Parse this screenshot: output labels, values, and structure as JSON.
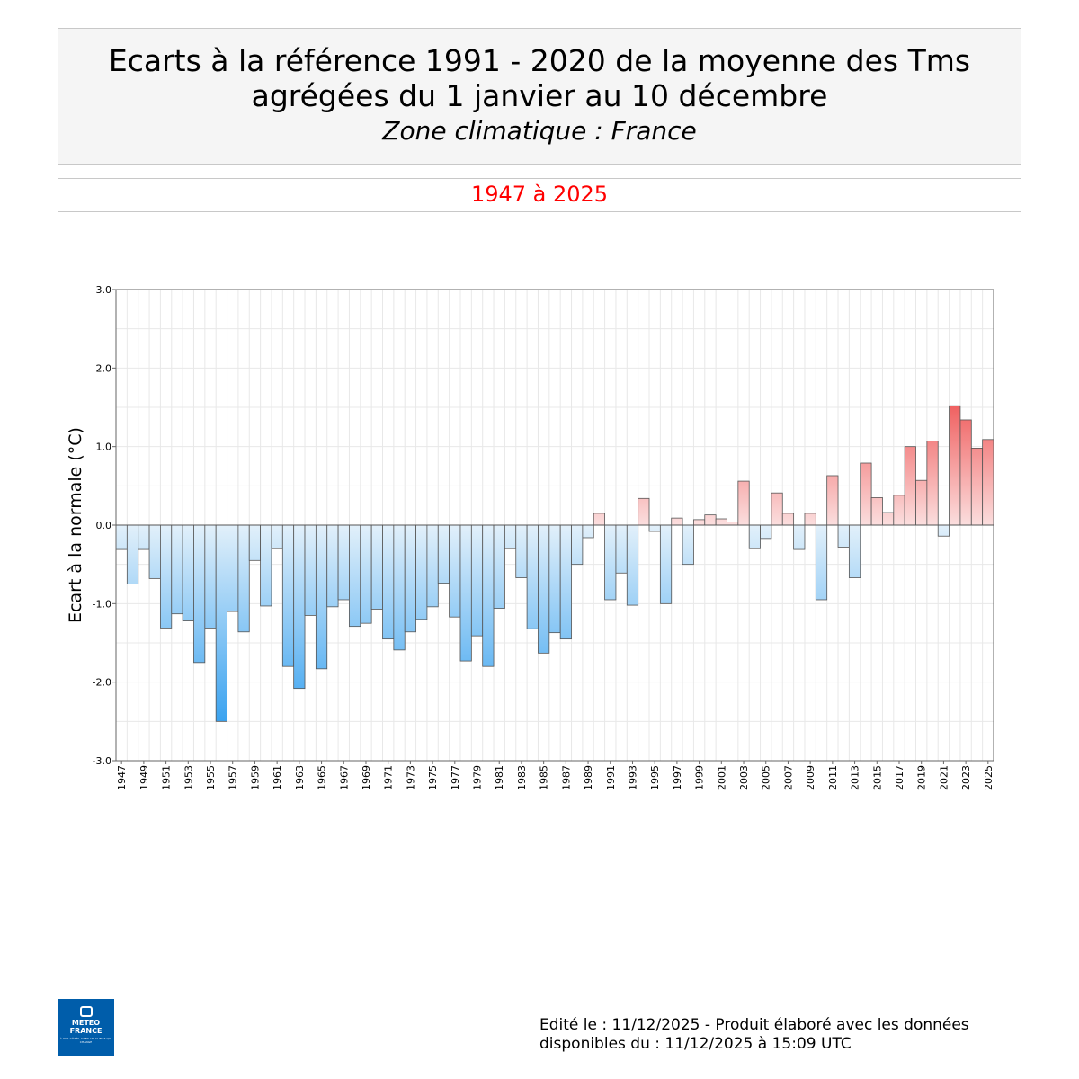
{
  "header": {
    "title_line1": "Ecarts à la référence 1991 - 2020 de la moyenne des Tms",
    "title_line2": "agrégées du 1 janvier au 10 décembre",
    "subtitle": "Zone climatique : France"
  },
  "period": {
    "label": "1947 à 2025",
    "color": "#ff0000"
  },
  "chart_data": {
    "type": "bar",
    "ylabel": "Ecart à la normale (°C)",
    "xlabel": "",
    "ylim": [
      -3.0,
      3.0
    ],
    "yticks": [
      "3.0",
      "2.0",
      "1.0",
      "0.0",
      "-1.0",
      "-2.0",
      "-3.0"
    ],
    "ytick_values": [
      3,
      2,
      1,
      0,
      -1,
      -2,
      -3
    ],
    "grid": true,
    "colors": {
      "negative_dark": "#3ba3f0",
      "negative_light": "#e2f0fa",
      "positive_dark": "#f06262",
      "positive_light": "#fbdede"
    },
    "categories": [
      1947,
      1948,
      1949,
      1950,
      1951,
      1952,
      1953,
      1954,
      1955,
      1956,
      1957,
      1958,
      1959,
      1960,
      1961,
      1962,
      1963,
      1964,
      1965,
      1966,
      1967,
      1968,
      1969,
      1970,
      1971,
      1972,
      1973,
      1974,
      1975,
      1976,
      1977,
      1978,
      1979,
      1980,
      1981,
      1982,
      1983,
      1984,
      1985,
      1986,
      1987,
      1988,
      1989,
      1990,
      1991,
      1992,
      1993,
      1994,
      1995,
      1996,
      1997,
      1998,
      1999,
      2000,
      2001,
      2002,
      2003,
      2004,
      2005,
      2006,
      2007,
      2008,
      2009,
      2010,
      2011,
      2012,
      2013,
      2014,
      2015,
      2016,
      2017,
      2018,
      2019,
      2020,
      2021,
      2022,
      2023,
      2024,
      2025
    ],
    "tick_labels": [
      "1947",
      "1949",
      "1951",
      "1953",
      "1955",
      "1957",
      "1959",
      "1961",
      "1963",
      "1965",
      "1967",
      "1969",
      "1971",
      "1973",
      "1975",
      "1977",
      "1979",
      "1981",
      "1983",
      "1985",
      "1987",
      "1989",
      "1991",
      "1993",
      "1995",
      "1997",
      "1999",
      "2001",
      "2003",
      "2005",
      "2007",
      "2009",
      "2011",
      "2013",
      "2015",
      "2017",
      "2019",
      "2021",
      "2023",
      "2025"
    ],
    "values": [
      -0.31,
      -0.75,
      -0.31,
      -0.68,
      -1.31,
      -1.13,
      -1.22,
      -1.75,
      -1.31,
      -2.5,
      -1.1,
      -1.36,
      -0.45,
      -1.03,
      -0.3,
      -1.8,
      -2.08,
      -1.15,
      -1.83,
      -1.04,
      -0.95,
      -1.29,
      -1.25,
      -1.07,
      -1.45,
      -1.59,
      -1.36,
      -1.2,
      -1.04,
      -0.74,
      -1.17,
      -1.73,
      -1.41,
      -1.8,
      -1.06,
      -0.3,
      -0.67,
      -1.32,
      -1.63,
      -1.37,
      -1.45,
      -0.5,
      -0.16,
      0.15,
      -0.95,
      -0.61,
      -1.02,
      0.34,
      -0.08,
      -1.0,
      0.09,
      -0.5,
      0.07,
      0.13,
      0.08,
      0.04,
      0.56,
      -0.3,
      -0.17,
      0.41,
      0.15,
      -0.31,
      0.15,
      -0.95,
      0.63,
      -0.28,
      -0.67,
      0.79,
      0.35,
      0.16,
      0.38,
      1.0,
      0.57,
      1.07,
      -0.14,
      1.52,
      1.34,
      0.98,
      1.09
    ]
  },
  "footer": {
    "line1": "Edité le : 11/12/2025 - Produit élaboré avec les données",
    "line2": "disponibles du : 11/12/2025 à 15:09 UTC"
  },
  "logo": {
    "line1": "METEO",
    "line2": "FRANCE",
    "tagline": "À VOS CÔTÉS, DANS UN CLIMAT QUI CHANGE"
  }
}
